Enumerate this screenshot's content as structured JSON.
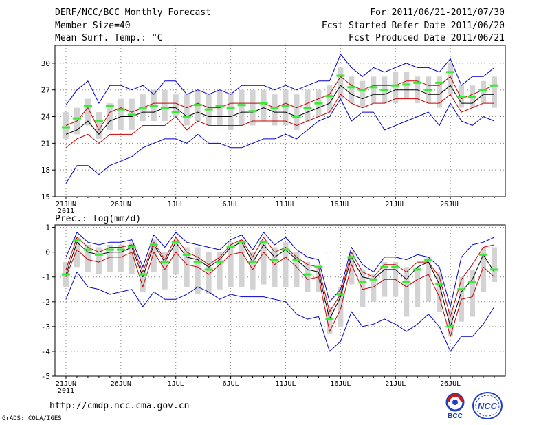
{
  "header": {
    "title": "DERF/NCC/BCC Monthly Forecast",
    "member_size": "Member Size=40",
    "variable_top": "Mean Surf. Temp.: °C",
    "for_period": "For 2011/06/21-2011/07/30",
    "started_date": "Fcst Started Refer Date 2011/06/20",
    "produced_date": "Fcst Produced Date 2011/06/21"
  },
  "footer": {
    "url": "http://cmdp.ncc.cma.gov.cn",
    "credit": "GrADS: COLA/IGES",
    "logo_bcc": "BCC",
    "logo_ncc": "NCC"
  },
  "colors": {
    "max_min": "#0000cc",
    "percentile": "#cc0000",
    "mean": "#000000",
    "box": "#d3d3d3",
    "obs": "#33ee33",
    "grid": "#888888"
  },
  "chart_data": [
    {
      "type": "line",
      "title": "Mean Surf. Temp.: °C",
      "xlabel": "",
      "ylabel": "",
      "x_ticks": [
        "21JUN",
        "26JUN",
        "1JUL",
        "6JUL",
        "11JUL",
        "16JUL",
        "21JUL",
        "26JUL"
      ],
      "x_tick_days": [
        1,
        6,
        11,
        16,
        21,
        26,
        31,
        36
      ],
      "year_label": "2011",
      "ylim": [
        15,
        32
      ],
      "yticks": [
        15,
        18,
        21,
        24,
        27,
        30
      ],
      "grid": true,
      "days": 40,
      "series": [
        {
          "name": "max",
          "values": [
            25.3,
            27.0,
            28.0,
            25.5,
            27.5,
            27.5,
            27.0,
            27.5,
            26.5,
            28.0,
            28.0,
            26.5,
            27.0,
            26.5,
            27.0,
            26.5,
            27.5,
            27.5,
            27.5,
            27.0,
            27.5,
            27.0,
            27.5,
            28.0,
            28.0,
            31.0,
            29.5,
            28.5,
            29.5,
            29.0,
            29.5,
            30.0,
            29.5,
            29.5,
            29.0,
            30.5,
            27.5,
            28.5,
            28.5,
            29.5
          ]
        },
        {
          "name": "p90",
          "values": [
            23.0,
            23.5,
            25.0,
            22.5,
            24.5,
            25.0,
            24.5,
            25.0,
            25.5,
            25.5,
            25.5,
            25.0,
            25.5,
            25.0,
            25.0,
            25.5,
            25.5,
            25.5,
            25.5,
            25.0,
            25.5,
            25.0,
            25.5,
            26.0,
            26.5,
            28.5,
            27.5,
            27.0,
            27.5,
            27.5,
            27.5,
            28.0,
            28.0,
            27.5,
            27.5,
            28.5,
            26.0,
            26.5,
            27.0,
            27.5
          ]
        },
        {
          "name": "mean",
          "values": [
            22.0,
            22.5,
            23.5,
            22.0,
            23.5,
            24.0,
            24.0,
            24.5,
            24.5,
            25.0,
            25.0,
            24.0,
            24.5,
            24.0,
            24.0,
            24.0,
            24.5,
            24.5,
            25.0,
            24.5,
            24.5,
            24.0,
            24.5,
            25.0,
            25.5,
            27.5,
            26.5,
            26.0,
            26.5,
            26.5,
            27.0,
            27.0,
            27.0,
            26.5,
            26.5,
            27.5,
            25.5,
            25.5,
            26.5,
            26.5
          ]
        },
        {
          "name": "p10",
          "values": [
            20.5,
            21.5,
            22.0,
            21.0,
            22.0,
            22.0,
            22.0,
            23.0,
            23.0,
            23.0,
            24.0,
            22.5,
            23.5,
            23.0,
            23.0,
            23.0,
            23.0,
            23.5,
            23.5,
            23.5,
            23.5,
            23.0,
            23.5,
            24.0,
            24.5,
            26.5,
            25.5,
            25.0,
            25.5,
            25.5,
            26.0,
            26.0,
            26.0,
            25.5,
            25.5,
            26.5,
            24.5,
            25.0,
            25.5,
            25.5
          ]
        },
        {
          "name": "min",
          "values": [
            16.5,
            18.5,
            18.5,
            17.5,
            18.5,
            19.0,
            19.5,
            20.5,
            21.0,
            21.5,
            21.5,
            21.0,
            22.0,
            21.0,
            21.0,
            20.5,
            20.5,
            21.0,
            21.5,
            21.5,
            22.0,
            21.5,
            22.5,
            23.5,
            24.0,
            26.0,
            23.5,
            24.5,
            24.5,
            22.5,
            23.0,
            23.5,
            24.0,
            24.5,
            23.0,
            25.5,
            23.5,
            23.0,
            24.0,
            23.5
          ]
        }
      ],
      "boxes": [
        [
          21.5,
          24.5
        ],
        [
          22.0,
          25.0
        ],
        [
          23.0,
          26.0
        ],
        [
          21.5,
          24.5
        ],
        [
          22.5,
          25.5
        ],
        [
          22.5,
          26.0
        ],
        [
          22.5,
          26.0
        ],
        [
          23.5,
          26.5
        ],
        [
          23.5,
          27.0
        ],
        [
          23.5,
          27.0
        ],
        [
          24.0,
          26.5
        ],
        [
          23.0,
          26.5
        ],
        [
          23.5,
          27.0
        ],
        [
          23.0,
          26.5
        ],
        [
          23.0,
          27.0
        ],
        [
          22.5,
          26.5
        ],
        [
          23.0,
          27.0
        ],
        [
          23.0,
          27.0
        ],
        [
          23.5,
          27.0
        ],
        [
          23.0,
          26.5
        ],
        [
          23.0,
          27.0
        ],
        [
          22.5,
          26.5
        ],
        [
          23.5,
          27.0
        ],
        [
          24.0,
          27.0
        ],
        [
          24.5,
          27.5
        ],
        [
          26.0,
          29.5
        ],
        [
          25.5,
          28.5
        ],
        [
          25.0,
          28.0
        ],
        [
          25.5,
          28.5
        ],
        [
          25.5,
          28.5
        ],
        [
          25.5,
          29.0
        ],
        [
          26.0,
          29.0
        ],
        [
          25.5,
          28.5
        ],
        [
          25.5,
          28.5
        ],
        [
          25.0,
          28.5
        ],
        [
          26.5,
          30.0
        ],
        [
          25.0,
          27.5
        ],
        [
          25.0,
          27.5
        ],
        [
          25.5,
          28.0
        ],
        [
          25.0,
          28.5
        ]
      ],
      "observed": [
        22.8,
        23.8,
        25.2,
        23.5,
        25.2,
        24.8,
        24.2,
        25.0,
        25.2,
        25.0,
        24.5,
        24.0,
        25.3,
        24.8,
        25.2,
        25.0,
        25.3,
        24.6,
        25.5,
        25.0,
        25.2,
        24.0,
        25.0,
        25.5,
        26.3,
        28.6,
        27.3,
        27.0,
        27.3,
        27.0,
        27.5,
        27.6,
        27.8,
        27.0,
        27.8,
        29.0,
        26.2,
        26.2,
        27.0,
        27.5
      ]
    },
    {
      "type": "line",
      "title": "Prec.: log(mm/d)",
      "xlabel": "",
      "ylabel": "",
      "x_ticks": [
        "21JUN",
        "26JUN",
        "1JUL",
        "6JUL",
        "11JUL",
        "16JUL",
        "21JUL",
        "26JUL"
      ],
      "x_tick_days": [
        1,
        6,
        11,
        16,
        21,
        26,
        31,
        36
      ],
      "year_label": "2011",
      "ylim": [
        -5,
        1.1
      ],
      "yticks": [
        -5,
        -4,
        -3,
        -2,
        -1,
        0,
        1
      ],
      "grid": true,
      "days": 40,
      "series": [
        {
          "name": "max",
          "values": [
            -0.2,
            0.8,
            0.4,
            0.3,
            0.4,
            0.4,
            0.5,
            -0.6,
            0.7,
            0.2,
            0.8,
            0.4,
            0.3,
            0.2,
            0.1,
            0.5,
            0.7,
            0.1,
            0.8,
            0.3,
            0.6,
            0.1,
            -0.2,
            -0.3,
            -2.0,
            -1.5,
            0.2,
            -0.5,
            -0.8,
            -0.2,
            -0.2,
            -0.3,
            -0.1,
            -0.2,
            -0.6,
            -2.2,
            -0.2,
            0.3,
            0.4,
            0.6
          ]
        },
        {
          "name": "p90",
          "values": [
            -0.7,
            0.6,
            0.2,
            0.0,
            0.2,
            0.2,
            0.3,
            -0.8,
            0.4,
            -0.3,
            0.6,
            0.0,
            -0.2,
            -0.5,
            -0.2,
            0.3,
            0.5,
            -0.2,
            0.6,
            0.0,
            0.2,
            -0.2,
            -0.5,
            -0.6,
            -2.4,
            -1.7,
            0.0,
            -0.8,
            -1.0,
            -0.5,
            -0.5,
            -0.8,
            -0.4,
            -0.4,
            -1.0,
            -2.6,
            -1.1,
            -0.5,
            0.2,
            0.3
          ]
        },
        {
          "name": "mean",
          "values": [
            -0.9,
            0.4,
            0.0,
            -0.1,
            0.0,
            0.0,
            0.2,
            -1.0,
            0.3,
            -0.4,
            0.4,
            -0.2,
            -0.3,
            -0.6,
            -0.3,
            0.2,
            0.4,
            -0.4,
            0.3,
            -0.2,
            0.1,
            -0.3,
            -0.7,
            -0.8,
            -2.7,
            -1.8,
            -0.2,
            -1.0,
            -1.1,
            -0.7,
            -0.7,
            -1.1,
            -0.6,
            -0.4,
            -1.3,
            -3.0,
            -1.6,
            -1.1,
            -0.1,
            -0.8
          ]
        },
        {
          "name": "p10",
          "values": [
            -1.0,
            0.1,
            -0.3,
            -0.4,
            -0.2,
            -0.2,
            0.0,
            -1.4,
            0.0,
            -0.7,
            0.0,
            -0.5,
            -0.6,
            -0.9,
            -0.5,
            -0.1,
            0.0,
            -0.7,
            0.0,
            -0.5,
            -0.2,
            -0.6,
            -1.1,
            -1.0,
            -3.2,
            -2.3,
            -0.5,
            -1.5,
            -1.4,
            -1.1,
            -1.1,
            -1.4,
            -1.1,
            -0.9,
            -1.8,
            -3.4,
            -1.9,
            -1.8,
            -0.6,
            -1.0
          ]
        },
        {
          "name": "min",
          "values": [
            -1.9,
            -0.8,
            -1.4,
            -1.5,
            -1.7,
            -1.6,
            -1.5,
            -2.2,
            -1.6,
            -1.9,
            -1.9,
            -1.7,
            -1.4,
            -1.6,
            -1.9,
            -1.7,
            -1.8,
            -1.8,
            -1.8,
            -1.9,
            -2.0,
            -2.5,
            -2.7,
            -2.6,
            -4.0,
            -3.6,
            -2.4,
            -3.0,
            -2.9,
            -2.7,
            -2.9,
            -3.2,
            -2.9,
            -2.5,
            -3.0,
            -4.0,
            -3.4,
            -3.4,
            -2.9,
            -2.2
          ]
        }
      ],
      "boxes": [
        [
          -1.4,
          -0.4
        ],
        [
          -0.6,
          0.6
        ],
        [
          -0.8,
          0.3
        ],
        [
          -0.9,
          0.2
        ],
        [
          -0.8,
          0.3
        ],
        [
          -0.8,
          0.3
        ],
        [
          -0.9,
          0.4
        ],
        [
          -1.6,
          -0.7
        ],
        [
          -0.8,
          0.5
        ],
        [
          -1.5,
          0.0
        ],
        [
          -0.9,
          0.5
        ],
        [
          -1.4,
          0.2
        ],
        [
          -1.7,
          0.2
        ],
        [
          -1.7,
          0.0
        ],
        [
          -1.5,
          0.0
        ],
        [
          -1.4,
          0.4
        ],
        [
          -1.4,
          0.5
        ],
        [
          -1.5,
          0.0
        ],
        [
          -1.3,
          0.4
        ],
        [
          -1.4,
          0.2
        ],
        [
          -1.4,
          0.4
        ],
        [
          -1.4,
          0.0
        ],
        [
          -1.6,
          -0.4
        ],
        [
          -1.6,
          -0.5
        ],
        [
          -3.3,
          -2.2
        ],
        [
          -3.0,
          -1.4
        ],
        [
          -1.3,
          0.0
        ],
        [
          -2.2,
          -0.7
        ],
        [
          -2.0,
          -0.9
        ],
        [
          -1.8,
          -0.4
        ],
        [
          -1.8,
          -0.4
        ],
        [
          -2.6,
          -0.6
        ],
        [
          -2.2,
          -0.6
        ],
        [
          -2.0,
          -0.2
        ],
        [
          -2.4,
          -0.8
        ],
        [
          -3.4,
          -2.3
        ],
        [
          -2.8,
          -1.0
        ],
        [
          -2.6,
          -0.7
        ],
        [
          -1.6,
          0.2
        ],
        [
          -1.2,
          0.2
        ]
      ],
      "observed": [
        -0.9,
        0.5,
        0.1,
        -0.1,
        0.1,
        0.1,
        0.2,
        -0.9,
        0.3,
        -0.4,
        0.4,
        -0.1,
        -0.4,
        -0.7,
        -0.4,
        0.2,
        0.4,
        -0.4,
        0.4,
        -0.3,
        0.1,
        -0.3,
        -0.9,
        -0.6,
        -2.7,
        -1.7,
        -0.2,
        -1.2,
        -1.1,
        -0.6,
        -0.6,
        -1.2,
        -0.7,
        -0.3,
        -1.3,
        -3.0,
        -1.5,
        -1.2,
        -0.1,
        -0.7
      ]
    }
  ]
}
